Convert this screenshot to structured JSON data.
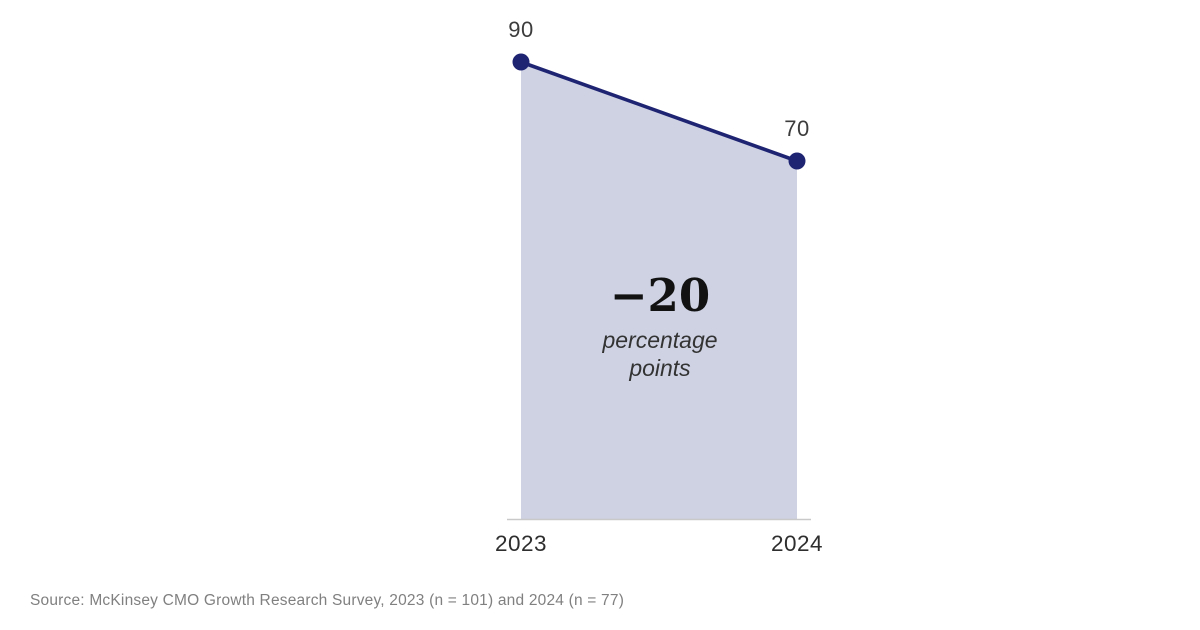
{
  "chart_data": {
    "type": "area",
    "title": "",
    "xlabel": "",
    "ylabel": "",
    "categories": [
      "2023",
      "2024"
    ],
    "values": [
      90,
      70
    ],
    "point_labels": [
      "90",
      "70"
    ],
    "annotation": {
      "value": "−20",
      "unit": "percentage points"
    },
    "colors": {
      "line": "#1f2472",
      "point": "#1f2472",
      "fill": "#ced2e3",
      "axis": "#c9c9c9"
    },
    "ylim": [
      0,
      90
    ],
    "grid": false,
    "legend": "none"
  },
  "source": "Source: McKinsey CMO Growth Research Survey, 2023 (n = 101) and 2024 (n = 77)"
}
